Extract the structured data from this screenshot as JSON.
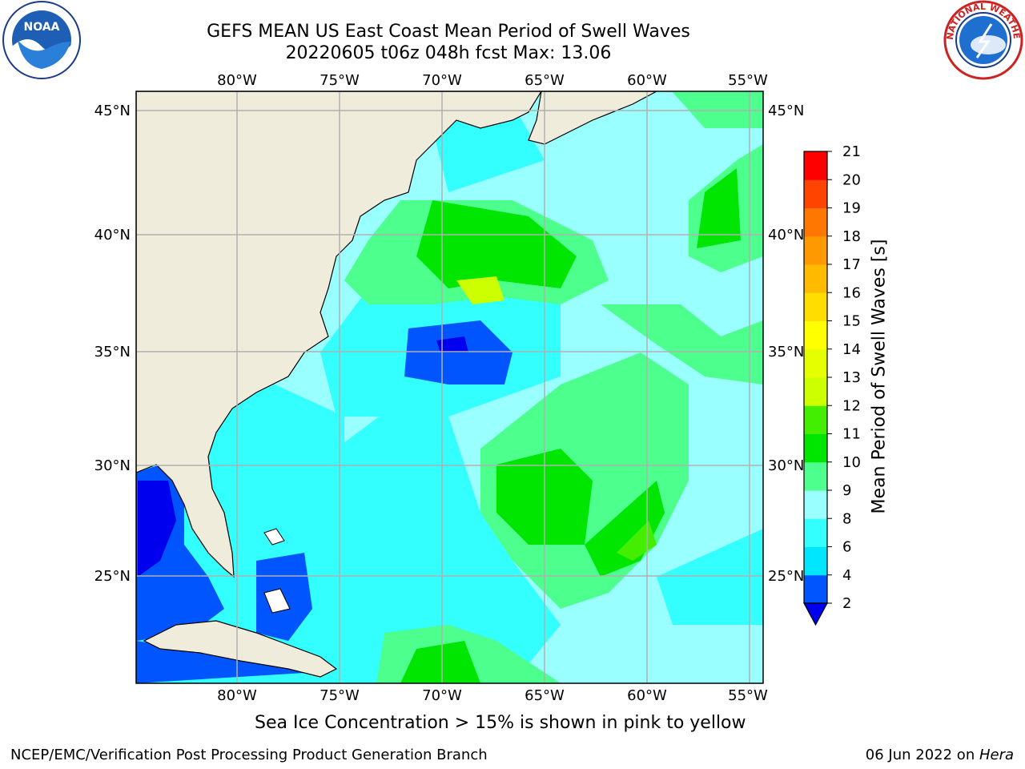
{
  "header": {
    "title": "GEFS MEAN US East Coast Mean Period of Swell Waves",
    "subtitle": "20220605 t06z 048h fcst   Max: 13.06",
    "left_logo": "NOAA",
    "right_logo": "NATIONAL WEATHER SERVICE"
  },
  "map": {
    "lon_labels_top": [
      "80°W",
      "75°W",
      "70°W",
      "65°W",
      "60°W",
      "55°W"
    ],
    "lon_labels_bottom": [
      "80°W",
      "75°W",
      "70°W",
      "65°W",
      "60°W",
      "55°W"
    ],
    "lat_labels_left": [
      "45°N",
      "40°N",
      "35°N",
      "30°N",
      "25°N"
    ],
    "lat_labels_right": [
      "45°N",
      "40°N",
      "35°N",
      "30°N",
      "25°N"
    ],
    "lon_range": [
      -85,
      -54
    ],
    "lat_range": [
      20,
      46
    ],
    "land_color": "#efecdc",
    "grid_color": "#b0b0b0"
  },
  "colorbar": {
    "title": "Mean Period of Swell Waves [s]",
    "ticks": [
      "2",
      "4",
      "6",
      "8",
      "9",
      "10",
      "11",
      "12",
      "13",
      "14",
      "15",
      "16",
      "17",
      "18",
      "19",
      "20",
      "21"
    ],
    "colors": [
      "#0055ff",
      "#00e6ff",
      "#33ffff",
      "#99ffff",
      "#4dff8c",
      "#00e600",
      "#44ee00",
      "#ccff00",
      "#e6ff00",
      "#ffff00",
      "#ffdd00",
      "#ffbb00",
      "#ff9900",
      "#ff7700",
      "#ff4400",
      "#ff0000"
    ],
    "extend_color": "#0000ee"
  },
  "notes": {
    "sea_ice": "Sea Ice Concentration > 15% is shown in pink to yellow"
  },
  "footer": {
    "left": "NCEP/EMC/Verification Post Processing Product Generation Branch",
    "right_date": "06 Jun 2022 on ",
    "right_machine": "Hera"
  }
}
